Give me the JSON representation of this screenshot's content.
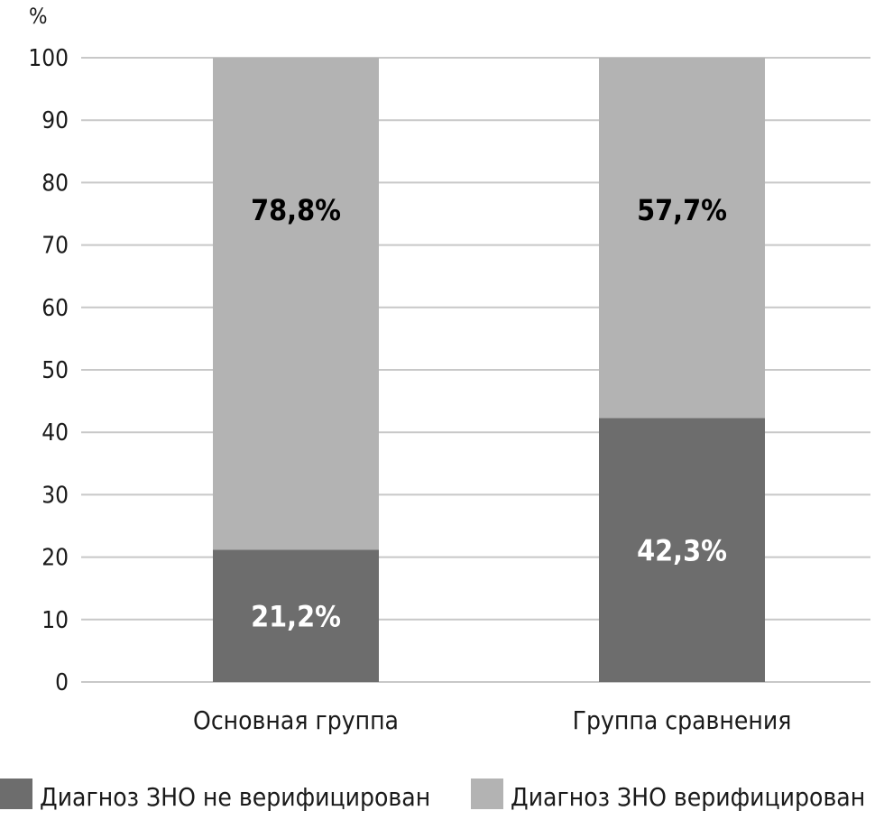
{
  "chart_data": {
    "type": "bar",
    "stacked": true,
    "y_unit_label": "%",
    "categories": [
      "Основная группа",
      "Группа сравнения"
    ],
    "series": [
      {
        "name": "Диагноз ЗНО не верифицирован",
        "values": [
          21.2,
          42.3
        ],
        "labels": [
          "21,2%",
          "42,3%"
        ],
        "color": "#6d6d6d",
        "label_color": "#ffffff"
      },
      {
        "name": "Диагноз ЗНО верифицирован",
        "values": [
          78.8,
          57.7
        ],
        "labels": [
          "78,8%",
          "57,7%"
        ],
        "color": "#b3b3b3",
        "label_color": "#000000"
      }
    ],
    "ylim": [
      0,
      100
    ],
    "yticks": [
      0,
      10,
      20,
      30,
      40,
      50,
      60,
      70,
      80,
      90,
      100
    ],
    "grid": true,
    "gridline_color": "#c8c8c8",
    "legend_position": "bottom"
  }
}
